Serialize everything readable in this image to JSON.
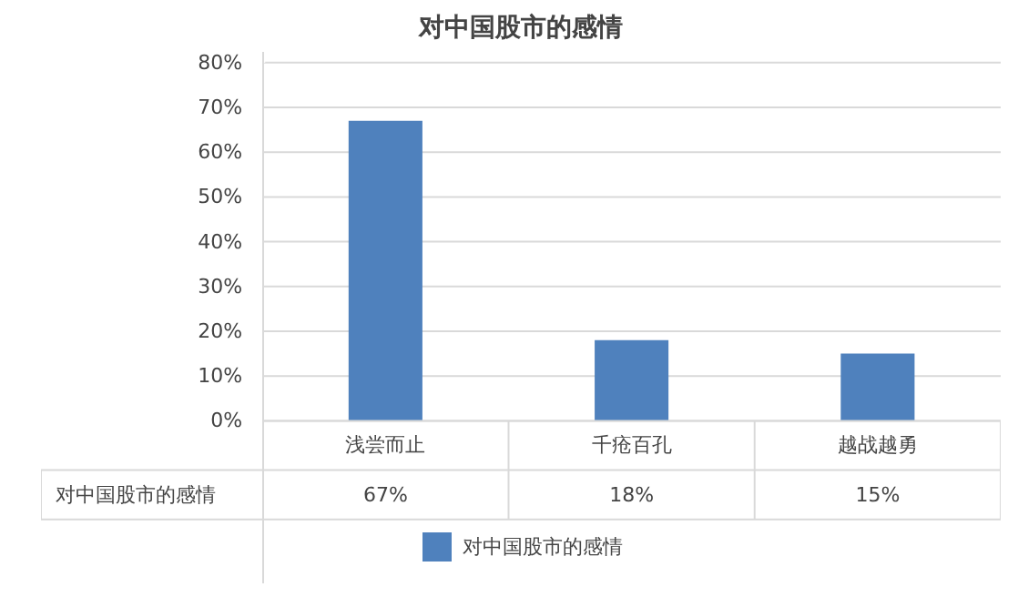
{
  "chart_data": {
    "type": "bar",
    "title": "对中国股市的感情",
    "categories": [
      "浅尝而止",
      "千疮百孔",
      "越战越勇"
    ],
    "series": [
      {
        "name": "对中国股市的感情",
        "color": "#4f81bd",
        "values": [
          67,
          18,
          15
        ],
        "value_labels": [
          "67%",
          "18%",
          "15%"
        ]
      }
    ],
    "ylim": [
      0,
      80
    ],
    "yticks": [
      {
        "value": 0,
        "label": "0%"
      },
      {
        "value": 10,
        "label": "10%"
      },
      {
        "value": 20,
        "label": "20%"
      },
      {
        "value": 30,
        "label": "30%"
      },
      {
        "value": 40,
        "label": "40%"
      },
      {
        "value": 50,
        "label": "50%"
      },
      {
        "value": 60,
        "label": "60%"
      },
      {
        "value": 70,
        "label": "70%"
      },
      {
        "value": 80,
        "label": "80%"
      }
    ],
    "grid": "y",
    "legend": "bottom"
  }
}
